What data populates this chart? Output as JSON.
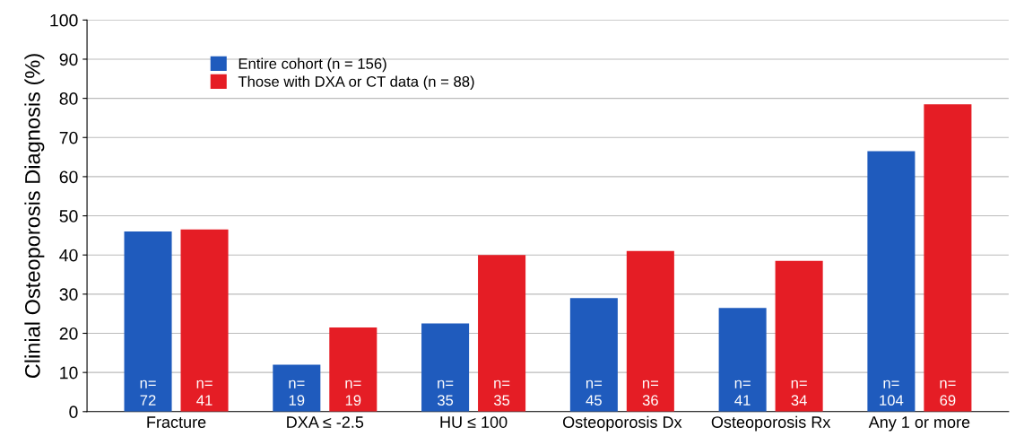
{
  "chart_data": {
    "type": "bar",
    "ylabel": "Clinial Osteoporosis Diagnosis (%)",
    "categories": [
      "Fracture",
      "DXA ≤ -2.5",
      "HU ≤ 100",
      "Osteoporosis Dx",
      "Osteoporosis Rx",
      "Any 1 or more"
    ],
    "series": [
      {
        "name": "Entire cohort (n = 156)",
        "color": "#1f5bbd",
        "values": [
          46,
          12,
          22.5,
          29,
          26.5,
          66.5
        ]
      },
      {
        "name": "Those with DXA or CT data (n = 88)",
        "color": "#e51d25",
        "values": [
          46.5,
          21.5,
          40,
          41,
          38.5,
          78.5
        ]
      }
    ],
    "annotations": [
      "n=\n72",
      "n=\n19",
      "n=\n35",
      "n=\n45",
      "n=\n41",
      "n=\n104",
      "n=\n41",
      "n=\n19",
      "n=\n35",
      "n=\n36",
      "n=\n34",
      "n=\n69"
    ],
    "ylim": [
      0,
      100
    ],
    "yticks": [
      0,
      10,
      20,
      30,
      40,
      50,
      60,
      70,
      80,
      90,
      100
    ],
    "grid": "y",
    "legend": "top left"
  }
}
